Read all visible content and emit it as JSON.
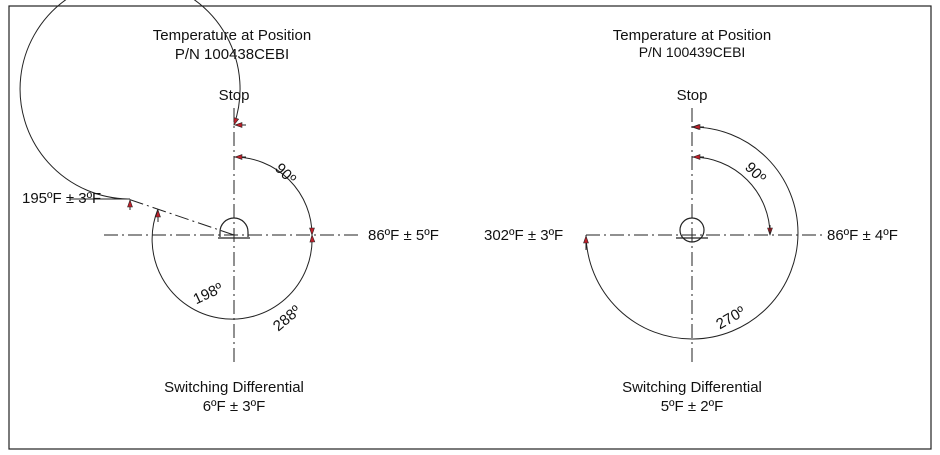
{
  "colors": {
    "line": "#222222",
    "arrow": "#c0202a",
    "background": "#ffffff"
  },
  "diagrams": [
    {
      "title": "Temperature at Position",
      "part_number": "P/N 100438CEBI",
      "top_label": "Stop",
      "left_label": "195ºF ± 3ºF",
      "right_label": "86ºF ± 5ºF",
      "angle_small": "90º",
      "angle_mid": "198º",
      "angle_large": "288º",
      "footer_title": "Switching Differential",
      "footer_value": "6ºF ± 3ºF"
    },
    {
      "title": "Temperature at Position",
      "part_number": "P/N 100439CEBI",
      "top_label": "Stop",
      "left_label": "302ºF ± 3ºF",
      "right_label": "86ºF ± 4ºF",
      "angle_small": "90º",
      "angle_large": "270º",
      "footer_title": "Switching Differential",
      "footer_value": "5ºF ± 2ºF"
    }
  ]
}
